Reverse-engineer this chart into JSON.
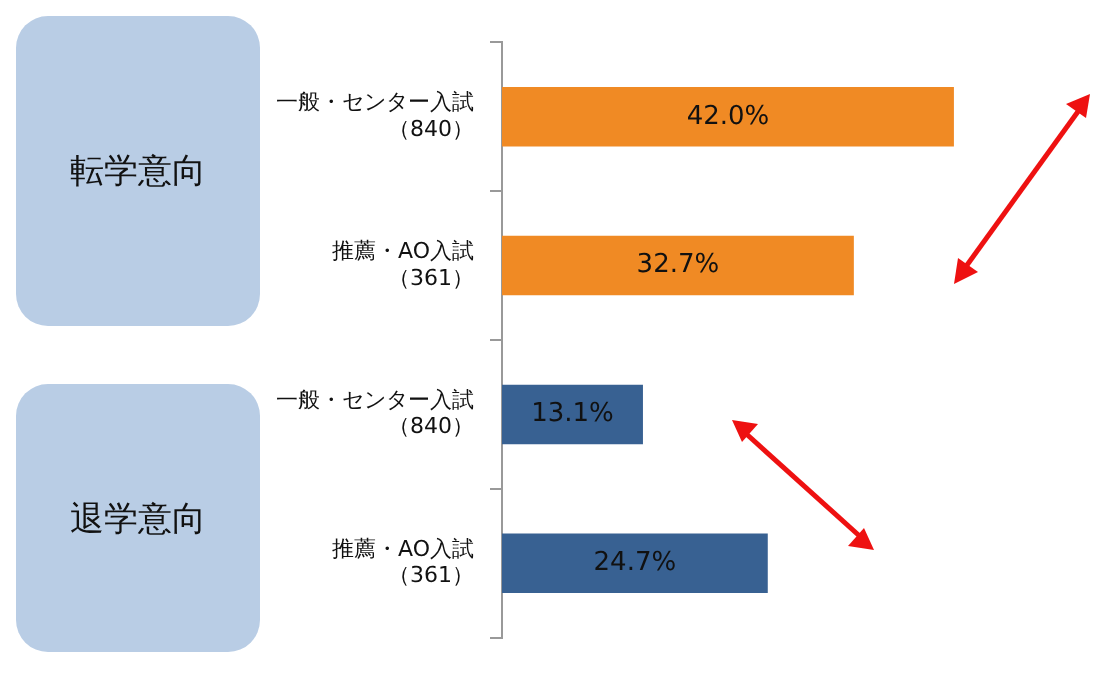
{
  "chart_data": {
    "type": "bar",
    "orientation": "horizontal",
    "categories": [
      "一般・センター入試（840）",
      "推薦・AO入試（361）",
      "一般・センター入試（840）",
      "推薦・AO入試（361）"
    ],
    "values": [
      42.0,
      32.7,
      13.1,
      24.7
    ],
    "colors": [
      "#f08a24",
      "#f08a24",
      "#386192",
      "#386192"
    ],
    "value_labels": [
      "42.0%",
      "32.7%",
      "13.1%",
      "24.7%"
    ],
    "annotations": [
      "転学意向",
      "退学意向"
    ]
  }
}
